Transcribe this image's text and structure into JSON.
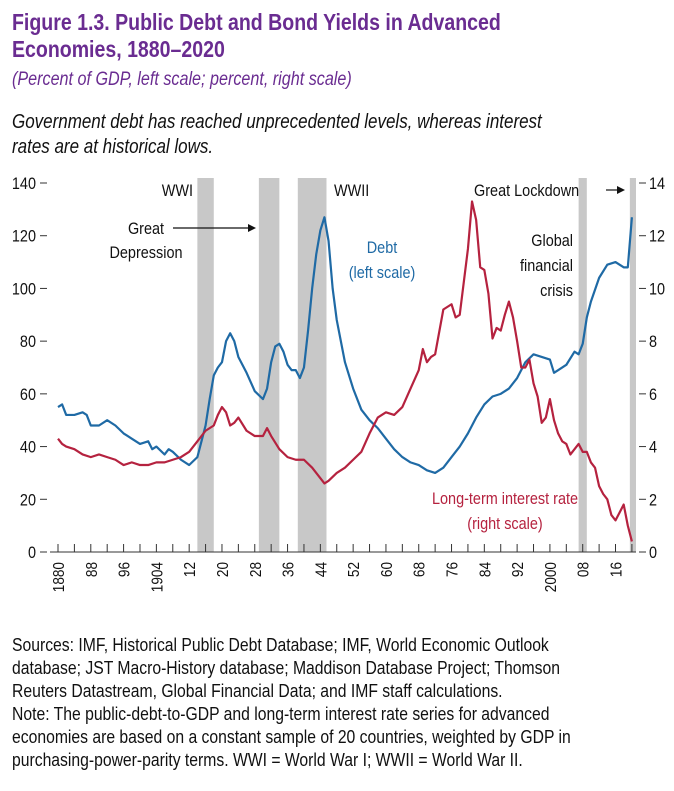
{
  "chart_data": {
    "type": "line",
    "title_lines": [
      "Figure 1.3. Public Debt and Bond Yields in Advanced",
      "Economies, 1880–2020"
    ],
    "subtitle": "(Percent of GDP, left scale; percent, right scale)",
    "description_lines": [
      "Government debt has reached unprecedented levels, whereas interest",
      "rates are at historical lows."
    ],
    "xlim": [
      1880,
      2021
    ],
    "xticks": [
      {
        "value": 1880,
        "label": "1880"
      },
      {
        "value": 1888,
        "label": "88"
      },
      {
        "value": 1896,
        "label": "96"
      },
      {
        "value": 1904,
        "label": "1904"
      },
      {
        "value": 1912,
        "label": "12"
      },
      {
        "value": 1920,
        "label": "20"
      },
      {
        "value": 1928,
        "label": "28"
      },
      {
        "value": 1936,
        "label": "36"
      },
      {
        "value": 1944,
        "label": "44"
      },
      {
        "value": 1952,
        "label": "52"
      },
      {
        "value": 1960,
        "label": "60"
      },
      {
        "value": 1968,
        "label": "68"
      },
      {
        "value": 1976,
        "label": "76"
      },
      {
        "value": 1984,
        "label": "84"
      },
      {
        "value": 1992,
        "label": "92"
      },
      {
        "value": 2000,
        "label": "2000"
      },
      {
        "value": 2008,
        "label": "08"
      },
      {
        "value": 2016,
        "label": "16"
      }
    ],
    "xminor_ticks": [
      1884,
      1892,
      1900,
      1908,
      1916,
      1924,
      1932,
      1940,
      1948,
      1956,
      1964,
      1972,
      1980,
      1988,
      1996,
      2004,
      2012,
      2020
    ],
    "ylim": [
      0,
      140
    ],
    "yticks": [
      0,
      20,
      40,
      60,
      80,
      100,
      120,
      140
    ],
    "y2lim": [
      0,
      14
    ],
    "y2ticks": [
      0,
      2,
      4,
      6,
      8,
      10,
      12,
      14
    ],
    "shaded_periods": [
      {
        "start": 1914,
        "end": 1918,
        "label_lines": [
          "WWI"
        ]
      },
      {
        "start": 1929,
        "end": 1934,
        "label_lines": [
          "Great",
          "Depression"
        ]
      },
      {
        "start": 1938.5,
        "end": 1945.5,
        "label_lines": [
          "WWII"
        ]
      },
      {
        "start": 2007,
        "end": 2009,
        "label_lines": [
          "Global",
          "financial",
          "crisis"
        ]
      },
      {
        "start": 2019.5,
        "end": 2021,
        "label_lines": [
          "Great Lockdown"
        ]
      }
    ],
    "shade_color": "#c8c8c8",
    "series": [
      {
        "name": "Debt",
        "note": "(left scale)",
        "color": "#1f6aa5",
        "axis": "y",
        "x": [
          1880,
          1881,
          1882,
          1884,
          1886,
          1887,
          1888,
          1890,
          1892,
          1894,
          1896,
          1898,
          1900,
          1902,
          1903,
          1904,
          1906,
          1907,
          1908,
          1910,
          1912,
          1914,
          1915,
          1916,
          1917,
          1918,
          1919,
          1920,
          1921,
          1922,
          1923,
          1924,
          1926,
          1928,
          1930,
          1931,
          1932,
          1933,
          1934,
          1935,
          1936,
          1937,
          1938,
          1939,
          1940,
          1941,
          1942,
          1943,
          1944,
          1945,
          1946,
          1947,
          1948,
          1950,
          1952,
          1954,
          1956,
          1958,
          1960,
          1962,
          1964,
          1966,
          1968,
          1970,
          1972,
          1974,
          1976,
          1978,
          1980,
          1982,
          1984,
          1986,
          1988,
          1990,
          1992,
          1994,
          1996,
          1998,
          2000,
          2001,
          2002,
          2004,
          2006,
          2007,
          2008,
          2009,
          2010,
          2012,
          2014,
          2016,
          2018,
          2019,
          2020
        ],
        "values": [
          55,
          56,
          52,
          52,
          53,
          52,
          48,
          48,
          50,
          48,
          45,
          43,
          41,
          42,
          39,
          40,
          37,
          39,
          38,
          35,
          33,
          36,
          42,
          48,
          58,
          67,
          70,
          72,
          80,
          83,
          80,
          74,
          68,
          61,
          58,
          62,
          72,
          78,
          79,
          76,
          71,
          69,
          69,
          66,
          70,
          84,
          100,
          113,
          122,
          127,
          118,
          100,
          88,
          72,
          62,
          54,
          50,
          47,
          43,
          39,
          36,
          34,
          33,
          31,
          30,
          32,
          36,
          40,
          45,
          51,
          56,
          59,
          60,
          62,
          66,
          72,
          75,
          74,
          73,
          68,
          69,
          71,
          76,
          75,
          79,
          89,
          95,
          104,
          109,
          110,
          108,
          108,
          127
        ]
      },
      {
        "name": "Long-term interest rate",
        "note": "(right scale)",
        "color": "#b5223f",
        "axis": "y2",
        "x": [
          1880,
          1881,
          1882,
          1884,
          1886,
          1888,
          1890,
          1892,
          1894,
          1896,
          1898,
          1900,
          1902,
          1904,
          1906,
          1908,
          1910,
          1912,
          1914,
          1916,
          1918,
          1919,
          1920,
          1921,
          1922,
          1923,
          1924,
          1926,
          1928,
          1930,
          1931,
          1932,
          1934,
          1936,
          1938,
          1940,
          1942,
          1944,
          1945,
          1946,
          1948,
          1950,
          1952,
          1954,
          1956,
          1958,
          1960,
          1962,
          1964,
          1966,
          1968,
          1969,
          1970,
          1971,
          1972,
          1974,
          1976,
          1977,
          1978,
          1980,
          1981,
          1982,
          1983,
          1984,
          1985,
          1986,
          1987,
          1988,
          1989,
          1990,
          1991,
          1992,
          1993,
          1994,
          1995,
          1996,
          1997,
          1998,
          1999,
          2000,
          2001,
          2002,
          2003,
          2004,
          2005,
          2006,
          2007,
          2008,
          2009,
          2010,
          2011,
          2012,
          2013,
          2014,
          2015,
          2016,
          2017,
          2018,
          2019,
          2020
        ],
        "values": [
          4.3,
          4.1,
          4.0,
          3.9,
          3.7,
          3.6,
          3.7,
          3.6,
          3.5,
          3.3,
          3.4,
          3.3,
          3.3,
          3.4,
          3.4,
          3.5,
          3.6,
          3.8,
          4.2,
          4.6,
          4.8,
          5.2,
          5.5,
          5.3,
          4.8,
          4.9,
          5.1,
          4.6,
          4.4,
          4.4,
          4.7,
          4.4,
          3.9,
          3.6,
          3.5,
          3.5,
          3.2,
          2.8,
          2.6,
          2.7,
          3.0,
          3.2,
          3.5,
          3.8,
          4.5,
          5.1,
          5.3,
          5.2,
          5.5,
          6.2,
          6.9,
          7.7,
          7.2,
          7.4,
          7.5,
          9.2,
          9.4,
          8.9,
          9.0,
          11.5,
          13.3,
          12.6,
          10.8,
          10.7,
          9.8,
          8.1,
          8.5,
          8.4,
          9.0,
          9.5,
          8.9,
          8.0,
          7.0,
          7.0,
          7.3,
          6.4,
          5.9,
          4.9,
          5.1,
          5.8,
          5.0,
          4.5,
          4.2,
          4.1,
          3.7,
          3.9,
          4.1,
          3.8,
          3.8,
          3.4,
          3.2,
          2.5,
          2.2,
          2.0,
          1.4,
          1.2,
          1.5,
          1.8,
          1.0,
          0.4
        ]
      }
    ],
    "footnote_lines": [
      "Sources: IMF, Historical Public Debt Database; IMF, World Economic Outlook",
      "database; JST Macro-History database; Maddison Database Project; Thomson",
      "Reuters Datastream, Global Financial Data; and IMF staff calculations.",
      "Note: The public-debt-to-GDP and long-term interest rate series for advanced",
      "economies are based on a constant sample of 20 countries, weighted by GDP in",
      "purchasing-power-parity terms. WWI = World War I; WWII = World War II."
    ]
  }
}
